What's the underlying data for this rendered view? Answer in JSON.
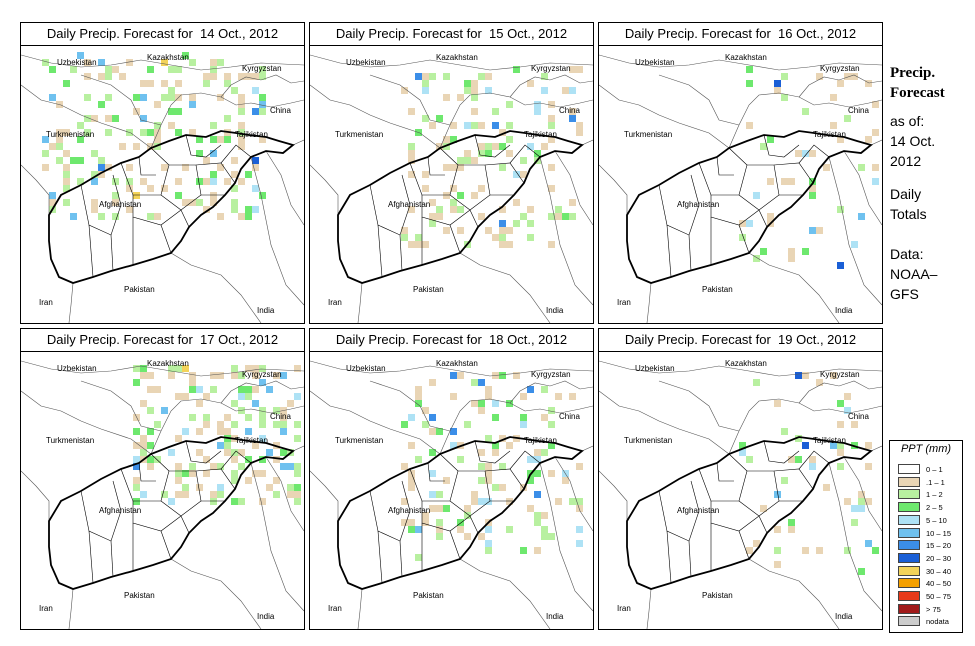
{
  "panels": [
    {
      "title": "Daily Precip. Forecast for  14 Oct., 2012",
      "intensity": "high"
    },
    {
      "title": "Daily Precip. Forecast for  15 Oct., 2012",
      "intensity": "med"
    },
    {
      "title": "Daily Precip. Forecast for  16 Oct., 2012",
      "intensity": "low"
    },
    {
      "title": "Daily Precip. Forecast for  17 Oct., 2012",
      "intensity": "high-ne"
    },
    {
      "title": "Daily Precip. Forecast for  18 Oct., 2012",
      "intensity": "med"
    },
    {
      "title": "Daily Precip. Forecast for  19 Oct., 2012",
      "intensity": "low"
    }
  ],
  "country_labels": {
    "uzbekistan": "Uzbekistan",
    "kazakhstan": "Kazakhstan",
    "kyrgyzstan": "Kyrgyzstan",
    "china": "China",
    "turkmenistan": "Turkmenistan",
    "tajikistan": "Tajikistan",
    "afghanistan": "Afghanistan",
    "pakistan": "Pakistan",
    "iran": "Iran",
    "india": "India"
  },
  "side": {
    "title_line1": "Precip.",
    "title_line2": "Forecast",
    "asof_line1": "as of:",
    "asof_line2": "14 Oct.",
    "asof_line3": "2012",
    "totals_line1": "Daily",
    "totals_line2": "Totals",
    "data_line1": "Data:",
    "data_line2": "NOAA–",
    "data_line3": "GFS"
  },
  "legend": {
    "title": "PPT (mm)",
    "items": [
      {
        "label": "0 – 1",
        "color": "#ffffff"
      },
      {
        "label": ".1 – 1",
        "color": "#e9d5b5"
      },
      {
        "label": "1 – 2",
        "color": "#b8f0a0"
      },
      {
        "label": "2 – 5",
        "color": "#6ee86e"
      },
      {
        "label": "5 – 10",
        "color": "#aee2f5"
      },
      {
        "label": "10 – 15",
        "color": "#6fc1ef"
      },
      {
        "label": "15 – 20",
        "color": "#3b8ee8"
      },
      {
        "label": "20 – 30",
        "color": "#1a5fd6"
      },
      {
        "label": "30 – 40",
        "color": "#f3d35a"
      },
      {
        "label": "40 – 50",
        "color": "#f5a000"
      },
      {
        "label": "50 – 75",
        "color": "#e83a1a"
      },
      {
        "label": "> 75",
        "color": "#a11a1a"
      },
      {
        "label": "nodata",
        "color": "#cccccc"
      }
    ]
  }
}
